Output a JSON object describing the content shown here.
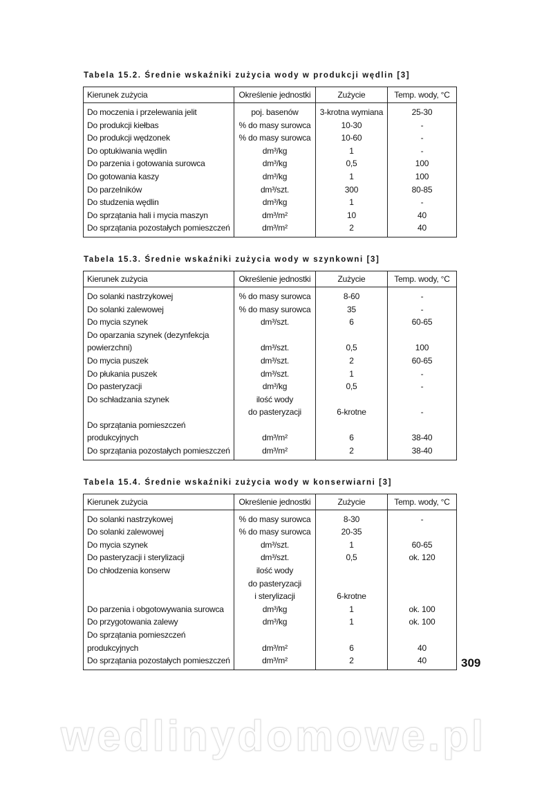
{
  "headers": [
    "Kierunek zużycia",
    "Określenie jednostki",
    "Zużycie",
    "Temp. wody, °C"
  ],
  "tables": [
    {
      "caption": "Tabela 15.2. Średnie wskaźniki zużycia wody w produkcji wędlin [3]",
      "rows": [
        [
          "Do moczenia i przelewania jelit",
          "poj. basenów",
          "3-krotna wymiana",
          "25-30"
        ],
        [
          "Do produkcji kiełbas",
          "% do masy surowca",
          "10-30",
          "-"
        ],
        [
          "Do produkcji wędzonek",
          "% do masy surowca",
          "10-60",
          "-"
        ],
        [
          "Do optukiwania wędlin",
          "dm³/kg",
          "1",
          "-"
        ],
        [
          "Do parzenia i gotowania surowca",
          "dm³/kg",
          "0,5",
          "100"
        ],
        [
          "Do gotowania kaszy",
          "dm³/kg",
          "1",
          "100"
        ],
        [
          "Do parzelników",
          "dm³/szt.",
          "300",
          "80-85"
        ],
        [
          "Do studzenia wędlin",
          "dm³/kg",
          "1",
          "-"
        ],
        [
          "Do sprzątania hali i mycia maszyn",
          "dm³/m²",
          "10",
          "40"
        ],
        [
          "Do sprzątania pozostałych pomieszczeń",
          "dm³/m²",
          "2",
          "40"
        ]
      ]
    },
    {
      "caption": "Tabela 15.3. Średnie wskaźniki zużycia wody w szynkowni [3]",
      "rows": [
        [
          "Do solanki nastrzykowej",
          "% do masy surowca",
          "8-60",
          "-"
        ],
        [
          "Do solanki zalewowej",
          "% do masy surowca",
          "35",
          "-"
        ],
        [
          "Do mycia szynek",
          "dm³/szt.",
          "6",
          "60-65"
        ],
        [
          "Do oparzania szynek (dezynfekcja powierzchni)",
          "dm³/szt.",
          "0,5",
          "100"
        ],
        [
          "Do mycia puszek",
          "dm³/szt.",
          "2",
          "60-65"
        ],
        [
          "Do płukania puszek",
          "dm³/szt.",
          "1",
          "-"
        ],
        [
          "Do pasteryzacji",
          "dm³/kg",
          "0,5",
          "-"
        ],
        [
          "Do schładzania szynek",
          "ilość wody do pasteryzacji",
          "6-krotne",
          "-"
        ],
        [
          "Do sprzątania pomieszczeń produkcyjnych",
          "dm³/m²",
          "6",
          "38-40"
        ],
        [
          "Do sprzątania pozostałych pomieszczeń",
          "dm³/m²",
          "2",
          "38-40"
        ]
      ]
    },
    {
      "caption": "Tabela 15.4. Średnie wskaźniki zużycia wody w konserwiarni [3]",
      "rows": [
        [
          "Do solanki nastrzykowej",
          "% do masy surowca",
          "8-30",
          "-"
        ],
        [
          "Do solanki zalewowej",
          "% do masy surowca",
          "20-35",
          ""
        ],
        [
          "Do mycia szynek",
          "dm³/szt.",
          "1",
          "60-65"
        ],
        [
          "Do pasteryzacji i sterylizacji",
          "dm³/szt.",
          "0,5",
          "ok. 120"
        ],
        [
          "Do chłodzenia konserw",
          "ilość wody do pasteryzacji i sterylizacji",
          "6-krotne",
          ""
        ],
        [
          "Do parzenia i obgotowywania surowca",
          "dm³/kg",
          "1",
          "ok. 100"
        ],
        [
          "Do przygotowania zalewy",
          "dm³/kg",
          "1",
          "ok. 100"
        ],
        [
          "Do sprzątania pomieszczeń produkcyjnych",
          "dm³/m²",
          "6",
          "40"
        ],
        [
          "Do sprzątania pozostałych pomieszczeń",
          "dm³/m²",
          "2",
          "40"
        ]
      ]
    }
  ],
  "page_number": "309",
  "watermark": "wedlinydomowe.pl"
}
